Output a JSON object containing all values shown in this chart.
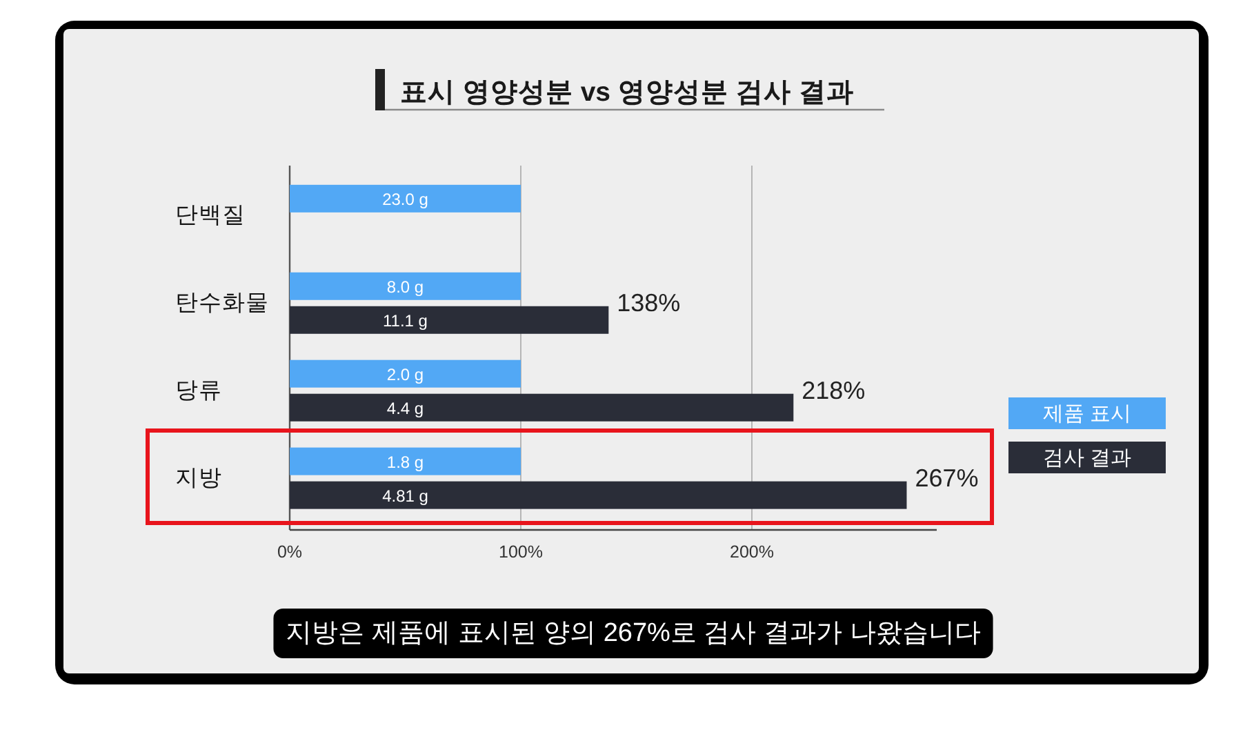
{
  "chart_data": {
    "type": "bar",
    "orientation": "horizontal",
    "title": "표시 영양성분 vs 영양성분 검사 결과",
    "categories": [
      "단백질",
      "탄수화물",
      "당류",
      "지방"
    ],
    "series": [
      {
        "name": "제품 표시",
        "color": "#52a8f5",
        "values": [
          100,
          100,
          100,
          100
        ]
      },
      {
        "name": "검사 결과",
        "color": "#2a2d38",
        "values": [
          null,
          138,
          218,
          267
        ],
        "value_labels": [
          null,
          "138%",
          "218%",
          "267%"
        ]
      }
    ],
    "xlim": [
      0,
      280
    ],
    "xticks": [
      {
        "value": 0,
        "label": "0%"
      },
      {
        "value": 100,
        "label": "100%"
      },
      {
        "value": 200,
        "label": "200%"
      }
    ],
    "grid": "x",
    "legend": "right",
    "annotations": [
      {
        "text": "23.0 g",
        "y": "단백질"
      },
      {
        "text": "8.0 g",
        "y": "탄수화물"
      },
      {
        "text": "11.1 g",
        "y": "탄수화물"
      },
      {
        "text": "2.0 g",
        "y": "당류"
      },
      {
        "text": "4.4 g",
        "y": "당류"
      },
      {
        "text": "1.8 g",
        "y": "지방"
      },
      {
        "text": "4.81 g",
        "y": "지방"
      },
      "지방은 제품에 표시된 양의 267%로 검사 결과가 나왔습니다"
    ]
  }
}
